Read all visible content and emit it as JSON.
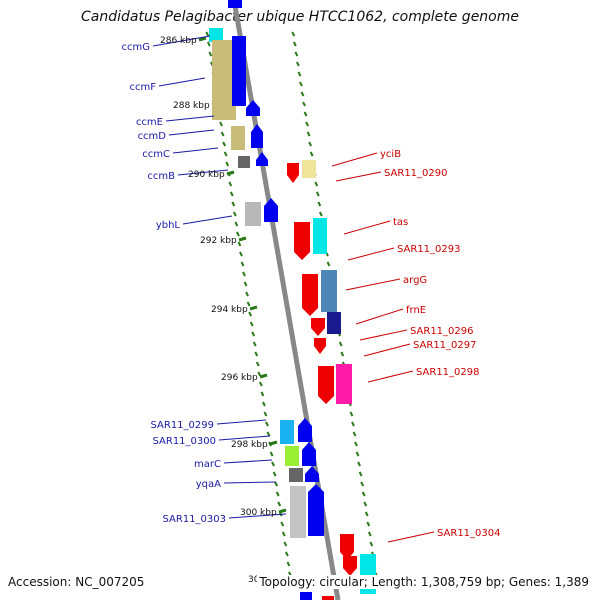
{
  "title": "Candidatus Pelagibacter ubique HTCC1062, complete genome",
  "footer": {
    "accession": "Accession: NC_007205",
    "stats": "Topology: circular; Length: 1,308,759 bp; Genes: 1,389"
  },
  "kbp_labels": [
    "286 kbp",
    "288 kbp",
    "290 kbp",
    "292 kbp",
    "294 kbp",
    "296 kbp",
    "298 kbp",
    "300 kbp",
    "30"
  ],
  "left_genes": [
    "ccmG",
    "ccmF",
    "ccmE",
    "ccmD",
    "ccmC",
    "ccmB",
    "ybhL",
    "SAR11_0299",
    "SAR11_0300",
    "marC",
    "yqaA",
    "SAR11_0303"
  ],
  "right_genes": [
    "yciB",
    "SAR11_0290",
    "tas",
    "SAR11_0293",
    "argG",
    "frnE",
    "SAR11_0296",
    "SAR11_0297",
    "SAR11_0298",
    "SAR11_0304"
  ],
  "colors": {
    "forward_gene": "#0000ee",
    "reverse_gene": "#ee0000",
    "left_label": "#1a1aa6",
    "right_label": "#cc0000",
    "backbone": "#888888",
    "tick": "#2a7a1a"
  }
}
